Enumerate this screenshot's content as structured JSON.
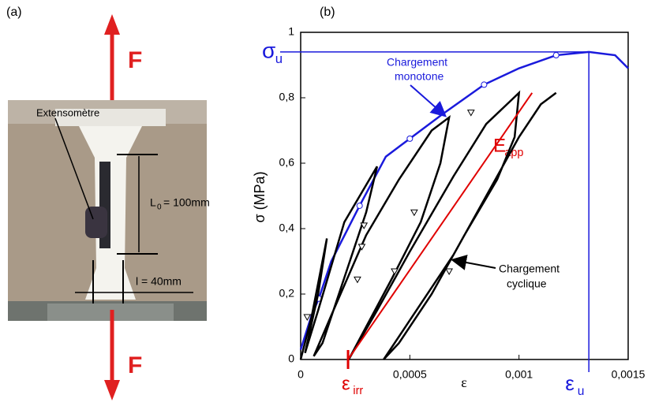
{
  "panel_a": {
    "label": "(a)",
    "force_top": "F",
    "force_bottom": "F",
    "extensometer": "Extensomètre",
    "gauge_length": {
      "symbol": "L",
      "subscript": "0",
      "text": "= 100mm"
    },
    "width": "l = 40mm"
  },
  "chart_data": {
    "type": "line",
    "panel_label": "(b)",
    "x_label": "ε",
    "y_label": "σ (MPa)",
    "xlim": [
      0,
      0.0015
    ],
    "ylim": [
      0,
      1
    ],
    "xticks": [
      0,
      {
        "value": 0.0005,
        "label": "0,0005"
      },
      {
        "value": 0.001,
        "label": "0,001"
      },
      {
        "value": 0.0015,
        "label": "0,0015"
      }
    ],
    "yticks": [
      0,
      {
        "value": 0.2,
        "label": "0,2"
      },
      {
        "value": 0.4,
        "label": "0,4"
      },
      {
        "value": 0.6,
        "label": "0,6"
      },
      {
        "value": 0.8,
        "label": "0,8"
      },
      1
    ],
    "series": [
      {
        "color": "#1a1adc",
        "line": true,
        "x": [
          0,
          5e-05,
          8.3e-05,
          0.00014,
          0.00027,
          0.00039,
          0.0005,
          0.00065,
          0.00084,
          0.001,
          0.00117,
          0.00132,
          0.00144,
          0.0015
        ],
        "values": [
          0.03,
          0.135,
          0.186,
          0.3,
          0.47,
          0.62,
          0.675,
          0.75,
          0.84,
          0.89,
          0.93,
          0.94,
          0.93,
          0.89
        ]
      },
      {
        "color": "#1a1adc",
        "line": false,
        "marker": "circle",
        "x": [
          8.3e-05,
          0.00027,
          0.0005,
          0.00084,
          0.00117
        ],
        "values": [
          0.186,
          0.47,
          0.675,
          0.84,
          0.93
        ]
      },
      {
        "color": "#000000",
        "line": true,
        "x": [
          0,
          5e-05,
          0.00012,
          8e-05,
          3e-05,
          2e-05,
          8e-05,
          0.0002,
          0.00035,
          0.0003,
          0.0002,
          0.0001,
          6e-05,
          0.00015,
          0.0003,
          0.00045,
          0.0006,
          0.00068,
          0.00064,
          0.00055,
          0.00042,
          0.0003,
          0.00022,
          0.00035,
          0.0005,
          0.0007,
          0.00085,
          0.001,
          0.00098,
          0.0009,
          0.00075,
          0.0006,
          0.00045,
          0.00038,
          0.0005,
          0.0007,
          0.00085,
          0.001,
          0.0011,
          0.00117,
          0.0011
        ],
        "values": [
          0,
          0.13,
          0.37,
          0.2,
          0.05,
          0.02,
          0.15,
          0.42,
          0.59,
          0.45,
          0.25,
          0.05,
          0.01,
          0.15,
          0.38,
          0.55,
          0.7,
          0.74,
          0.6,
          0.42,
          0.25,
          0.1,
          0,
          0.15,
          0.33,
          0.56,
          0.72,
          0.815,
          0.68,
          0.55,
          0.38,
          0.2,
          0.05,
          0,
          0.12,
          0.32,
          0.5,
          0.68,
          0.78,
          0.815,
          0.78
        ]
      },
      {
        "color": "#000000",
        "line": false,
        "marker": "triangle",
        "x": [
          3e-05,
          0.00029,
          0.00028,
          0.00026,
          0.00052,
          0.00043,
          0.00068,
          0.00078
        ],
        "values": [
          0.13,
          0.41,
          0.345,
          0.245,
          0.45,
          0.27,
          0.27,
          0.755
        ]
      },
      {
        "color": "#e00000",
        "line": true,
        "x": [
          0.000217,
          0.00106
        ],
        "values": [
          0,
          0.815
        ]
      }
    ],
    "sigma_u": {
      "symbol": "σ",
      "subscript": "u",
      "value": 0.94,
      "color": "#1a1adc"
    },
    "eps_u": {
      "symbol": "ε",
      "subscript": "u",
      "value": 0.00132,
      "color": "#1a1adc"
    },
    "eps_irr": {
      "symbol": "ε",
      "subscript": "irr",
      "value": 0.000217,
      "color": "#e00000"
    },
    "e_app": {
      "symbol": "E",
      "subscript": "app",
      "color": "#e00000"
    },
    "monotone_label": [
      "Chargement",
      "monotone"
    ],
    "cyclic_label": [
      "Chargement",
      "cyclique"
    ]
  }
}
